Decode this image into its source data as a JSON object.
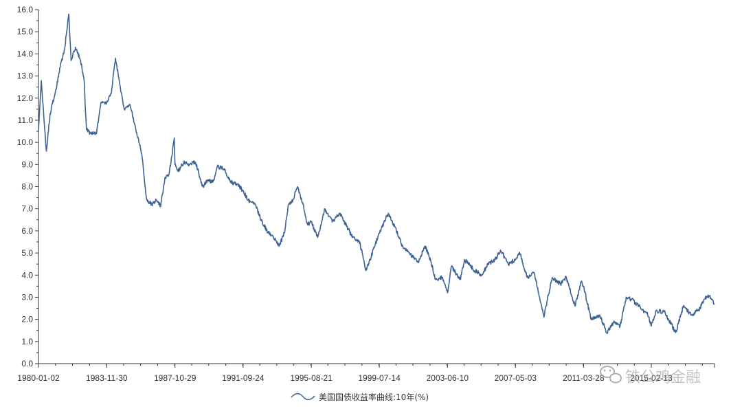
{
  "chart_data": {
    "type": "line",
    "title": "",
    "xlabel": "",
    "ylabel": "",
    "ylim": [
      0,
      16
    ],
    "yticks": [
      0.0,
      1.0,
      2.0,
      3.0,
      4.0,
      5.0,
      6.0,
      7.0,
      8.0,
      9.0,
      10.0,
      11.0,
      12.0,
      13.0,
      14.0,
      15.0,
      16.0
    ],
    "ytick_labels": [
      "0.0",
      "1.0",
      "2.0",
      "3.0",
      "4.0",
      "5.0",
      "6.0",
      "7.0",
      "8.0",
      "9.0",
      "10.0",
      "11.0",
      "12.0",
      "13.0",
      "14.0",
      "15.0",
      "16.0"
    ],
    "xlim": [
      "1980-01-02",
      "2018-09-28"
    ],
    "xtick_labels": [
      "1980-01-02",
      "1983-11-30",
      "1987-10-29",
      "1991-09-24",
      "1995-08-21",
      "1999-07-14",
      "2003-06-10",
      "2007-05-03",
      "2011-03-28",
      "2015-02-13"
    ],
    "grid": false,
    "legend_position": "bottom-center",
    "color": "#3e6393",
    "series": [
      {
        "name": "美国国债收益率曲线:10年(%)",
        "x": [
          "1980-01-02",
          "1980-03-01",
          "1980-06-15",
          "1980-09-01",
          "1981-01-01",
          "1981-04-01",
          "1981-07-01",
          "1981-09-28",
          "1981-11-15",
          "1982-02-15",
          "1982-06-01",
          "1982-08-15",
          "1982-10-01",
          "1983-01-01",
          "1983-05-01",
          "1983-08-01",
          "1983-11-30",
          "1984-03-01",
          "1984-06-01",
          "1984-09-01",
          "1984-12-01",
          "1985-04-01",
          "1985-08-01",
          "1985-12-01",
          "1986-03-15",
          "1986-07-01",
          "1986-10-01",
          "1987-01-01",
          "1987-04-01",
          "1987-07-01",
          "1987-10-15",
          "1987-10-29",
          "1988-01-01",
          "1988-05-01",
          "1988-09-01",
          "1989-01-01",
          "1989-06-01",
          "1989-09-01",
          "1990-01-01",
          "1990-04-01",
          "1990-08-15",
          "1991-01-01",
          "1991-06-01",
          "1991-09-24",
          "1992-01-01",
          "1992-06-01",
          "1992-10-01",
          "1993-03-01",
          "1993-06-01",
          "1993-10-15",
          "1994-02-01",
          "1994-05-01",
          "1994-08-01",
          "1994-11-01",
          "1995-03-01",
          "1995-06-01",
          "1995-08-21",
          "1996-01-01",
          "1996-06-01",
          "1996-11-01",
          "1997-04-01",
          "1997-09-01",
          "1998-01-01",
          "1998-06-01",
          "1998-10-05",
          "1999-01-01",
          "1999-07-14",
          "2000-01-20",
          "2000-06-01",
          "2000-12-01",
          "2001-04-01",
          "2001-10-01",
          "2002-03-01",
          "2002-07-01",
          "2002-10-01",
          "2003-03-01",
          "2003-06-10",
          "2003-09-01",
          "2004-03-01",
          "2004-06-01",
          "2005-01-01",
          "2005-06-01",
          "2005-10-01",
          "2006-03-01",
          "2006-07-01",
          "2006-12-01",
          "2007-05-03",
          "2007-08-01",
          "2008-01-01",
          "2008-06-01",
          "2008-12-18",
          "2009-03-01",
          "2009-06-10",
          "2009-12-01",
          "2010-04-01",
          "2010-10-01",
          "2011-02-08",
          "2011-03-28",
          "2011-09-01",
          "2012-03-01",
          "2012-07-25",
          "2013-01-01",
          "2013-05-01",
          "2013-09-05",
          "2014-01-01",
          "2014-06-01",
          "2014-12-01",
          "2015-02-13",
          "2015-06-01",
          "2015-12-01",
          "2016-07-08",
          "2016-12-15",
          "2017-06-01",
          "2017-12-01",
          "2018-02-20",
          "2018-05-17",
          "2018-08-01",
          "2018-09-28"
        ],
        "y": [
          10.5,
          12.8,
          9.6,
          11.3,
          12.4,
          13.4,
          14.2,
          15.8,
          13.7,
          14.3,
          13.7,
          12.8,
          10.6,
          10.4,
          10.4,
          11.8,
          11.8,
          12.2,
          13.8,
          12.6,
          11.5,
          11.7,
          10.6,
          9.5,
          7.4,
          7.2,
          7.4,
          7.1,
          8.4,
          8.6,
          10.2,
          9.0,
          8.7,
          9.1,
          9.0,
          9.1,
          8.0,
          8.3,
          8.2,
          8.9,
          8.8,
          8.2,
          8.1,
          7.8,
          7.4,
          7.2,
          6.5,
          5.9,
          5.8,
          5.3,
          5.9,
          7.2,
          7.4,
          8.0,
          7.2,
          6.3,
          6.4,
          5.7,
          7.0,
          6.4,
          6.8,
          6.2,
          5.7,
          5.5,
          4.2,
          4.7,
          5.9,
          6.8,
          6.2,
          5.2,
          5.0,
          4.6,
          5.3,
          4.6,
          3.8,
          3.9,
          3.2,
          4.4,
          3.8,
          4.7,
          4.2,
          4.0,
          4.5,
          4.7,
          5.1,
          4.5,
          4.7,
          5.0,
          3.9,
          4.1,
          2.1,
          2.9,
          3.9,
          3.6,
          3.9,
          2.6,
          3.7,
          3.5,
          2.0,
          2.2,
          1.4,
          1.9,
          1.7,
          3.0,
          2.9,
          2.6,
          2.2,
          1.7,
          2.4,
          2.3,
          1.4,
          2.6,
          2.2,
          2.5,
          2.9,
          3.1,
          2.9,
          2.7
        ]
      }
    ]
  },
  "legend": {
    "label": "美国国债收益率曲线:10年(%)"
  },
  "watermark": {
    "text": "铁公鸡金融",
    "icon": "wechat-icon"
  }
}
